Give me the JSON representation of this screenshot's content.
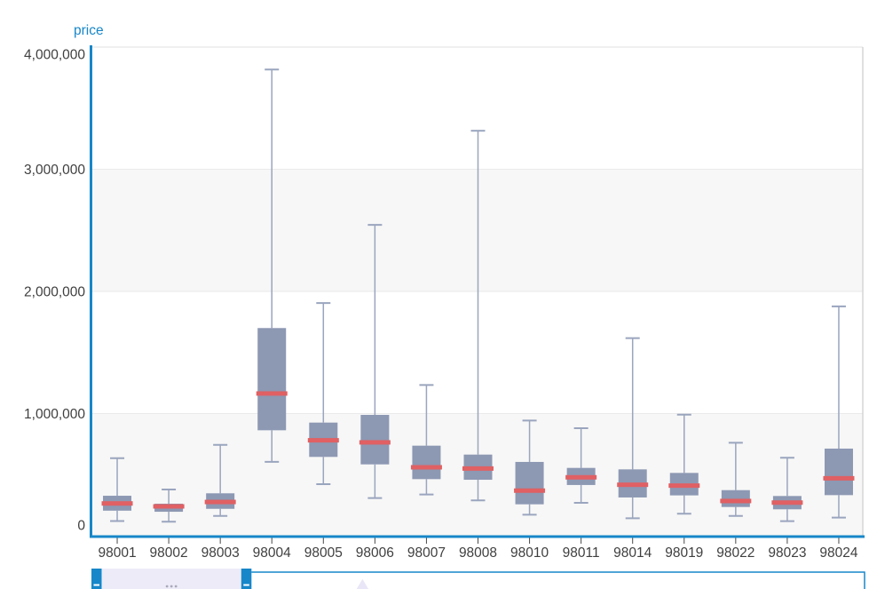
{
  "chart": {
    "title": "price"
  },
  "colors": {
    "axis": "#1787c9",
    "box_fill": "#8d98b3",
    "whisker": "#9aa5be",
    "median": "#e06063",
    "band": "#f7f7f7",
    "gridline": "#eaeaea",
    "plot_border": "#d6d6d6",
    "top_border": "#ececec",
    "tick_label": "#3f3f3f",
    "tick_mark": "#4a4a4a",
    "title_color": "#1787c9",
    "brush_selection": "#edebf8",
    "brush_handle": "#1787c9",
    "brush_dots": "#a9a9bb",
    "tooltip_arrow": "#e9e6f7"
  },
  "brush": {
    "selected_start_category": "98001",
    "selected_end_category": "98003"
  },
  "chart_data": {
    "type": "boxplot",
    "title": "price",
    "ylabel": "price",
    "xlabel": "",
    "ylim": [
      0,
      4000000
    ],
    "y_ticks": [
      0,
      1000000,
      2000000,
      3000000,
      4000000
    ],
    "y_tick_labels": [
      "0",
      "1,000,000",
      "2,000,000",
      "3,000,000",
      "4,000,000"
    ],
    "grid": "alternating-horizontal-bands",
    "legend": "none",
    "categories": [
      "98001",
      "98002",
      "98003",
      "98004",
      "98005",
      "98006",
      "98007",
      "98008",
      "98010",
      "98011",
      "98014",
      "98019",
      "98022",
      "98023",
      "98024"
    ],
    "series": [
      {
        "name": "price",
        "boxes": [
          {
            "low": 120000,
            "q1": 205000,
            "median": 264000,
            "q3": 327000,
            "high": 635000
          },
          {
            "low": 115000,
            "q1": 196000,
            "median": 240000,
            "q3": 262000,
            "high": 378000
          },
          {
            "low": 162000,
            "q1": 220000,
            "median": 276000,
            "q3": 347000,
            "high": 744000
          },
          {
            "low": 605000,
            "q1": 863000,
            "median": 1164000,
            "q3": 1700000,
            "high": 3816000
          },
          {
            "low": 422000,
            "q1": 645000,
            "median": 781000,
            "q3": 926000,
            "high": 1905000
          },
          {
            "low": 308000,
            "q1": 584000,
            "median": 764000,
            "q3": 989000,
            "high": 2545000
          },
          {
            "low": 337000,
            "q1": 463000,
            "median": 560000,
            "q3": 737000,
            "high": 1234000
          },
          {
            "low": 289000,
            "q1": 458000,
            "median": 550000,
            "q3": 664000,
            "high": 3315000
          },
          {
            "low": 172000,
            "q1": 257000,
            "median": 369000,
            "q3": 604000,
            "high": 943000
          },
          {
            "low": 269000,
            "q1": 415000,
            "median": 478000,
            "q3": 555000,
            "high": 880000
          },
          {
            "low": 143000,
            "q1": 313000,
            "median": 417000,
            "q3": 543000,
            "high": 1617000
          },
          {
            "low": 180000,
            "q1": 330000,
            "median": 410000,
            "q3": 514000,
            "high": 991000
          },
          {
            "low": 162000,
            "q1": 235000,
            "median": 284000,
            "q3": 373000,
            "high": 761000
          },
          {
            "low": 119000,
            "q1": 216000,
            "median": 271000,
            "q3": 325000,
            "high": 638000
          },
          {
            "low": 148000,
            "q1": 332000,
            "median": 470000,
            "q3": 713000,
            "high": 1877000
          }
        ]
      }
    ]
  }
}
